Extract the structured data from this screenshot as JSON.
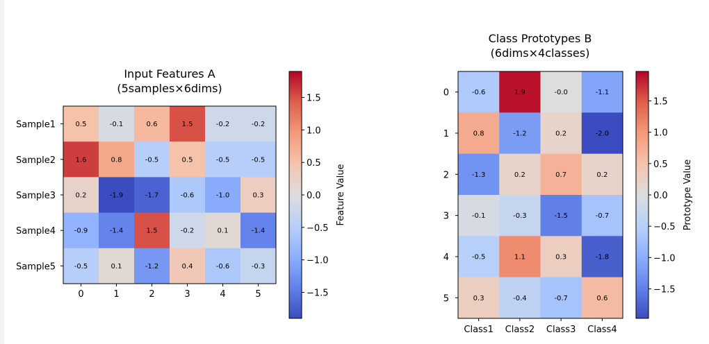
{
  "chart_data": [
    {
      "type": "heatmap",
      "title": "Input Features A\n(5samples×6dims)",
      "row_labels": [
        "Sample1",
        "Sample2",
        "Sample3",
        "Sample4",
        "Sample5"
      ],
      "col_labels": [
        "0",
        "1",
        "2",
        "3",
        "4",
        "5"
      ],
      "values": [
        [
          0.5,
          -0.1,
          0.6,
          1.5,
          -0.2,
          -0.2
        ],
        [
          1.6,
          0.8,
          -0.5,
          0.5,
          -0.5,
          -0.5
        ],
        [
          0.2,
          -1.9,
          -1.7,
          -0.6,
          -1.0,
          0.3
        ],
        [
          -0.9,
          -1.4,
          1.5,
          -0.2,
          0.1,
          -1.4
        ],
        [
          -0.5,
          0.1,
          -1.2,
          0.4,
          -0.6,
          -0.3
        ]
      ],
      "colormap": "coolwarm",
      "vmin": -1.9,
      "vmax": 1.9,
      "colorbar_label": "Feature Value",
      "colorbar_ticks": [
        1.5,
        1.0,
        0.5,
        0.0,
        -0.5,
        -1.0,
        -1.5
      ],
      "colorbar_tick_labels": [
        "1.5",
        "1.0",
        "0.5",
        "0.0",
        "−0.5",
        "−1.0",
        "−1.5"
      ]
    },
    {
      "type": "heatmap",
      "title": "Class Prototypes B\n(6dims×4classes)",
      "row_labels": [
        "0",
        "1",
        "2",
        "3",
        "4",
        "5"
      ],
      "col_labels": [
        "Class1",
        "Class2",
        "Class3",
        "Class4"
      ],
      "values": [
        [
          -0.6,
          1.9,
          -0.0,
          -1.1
        ],
        [
          0.8,
          -1.2,
          0.2,
          -2.0
        ],
        [
          -1.3,
          0.2,
          0.7,
          0.2
        ],
        [
          -0.1,
          -0.3,
          -1.5,
          -0.7
        ],
        [
          -0.5,
          1.1,
          0.3,
          -1.8
        ],
        [
          0.3,
          -0.4,
          -0.7,
          0.6
        ]
      ],
      "colormap": "coolwarm",
      "vmin": -1.97,
      "vmax": 1.97,
      "colorbar_label": "Prototype Value",
      "colorbar_ticks": [
        1.5,
        1.0,
        0.5,
        0.0,
        -0.5,
        -1.0,
        -1.5
      ],
      "colorbar_tick_labels": [
        "1.5",
        "1.0",
        "0.5",
        "0.0",
        "−0.5",
        "−1.0",
        "−1.5"
      ]
    }
  ]
}
